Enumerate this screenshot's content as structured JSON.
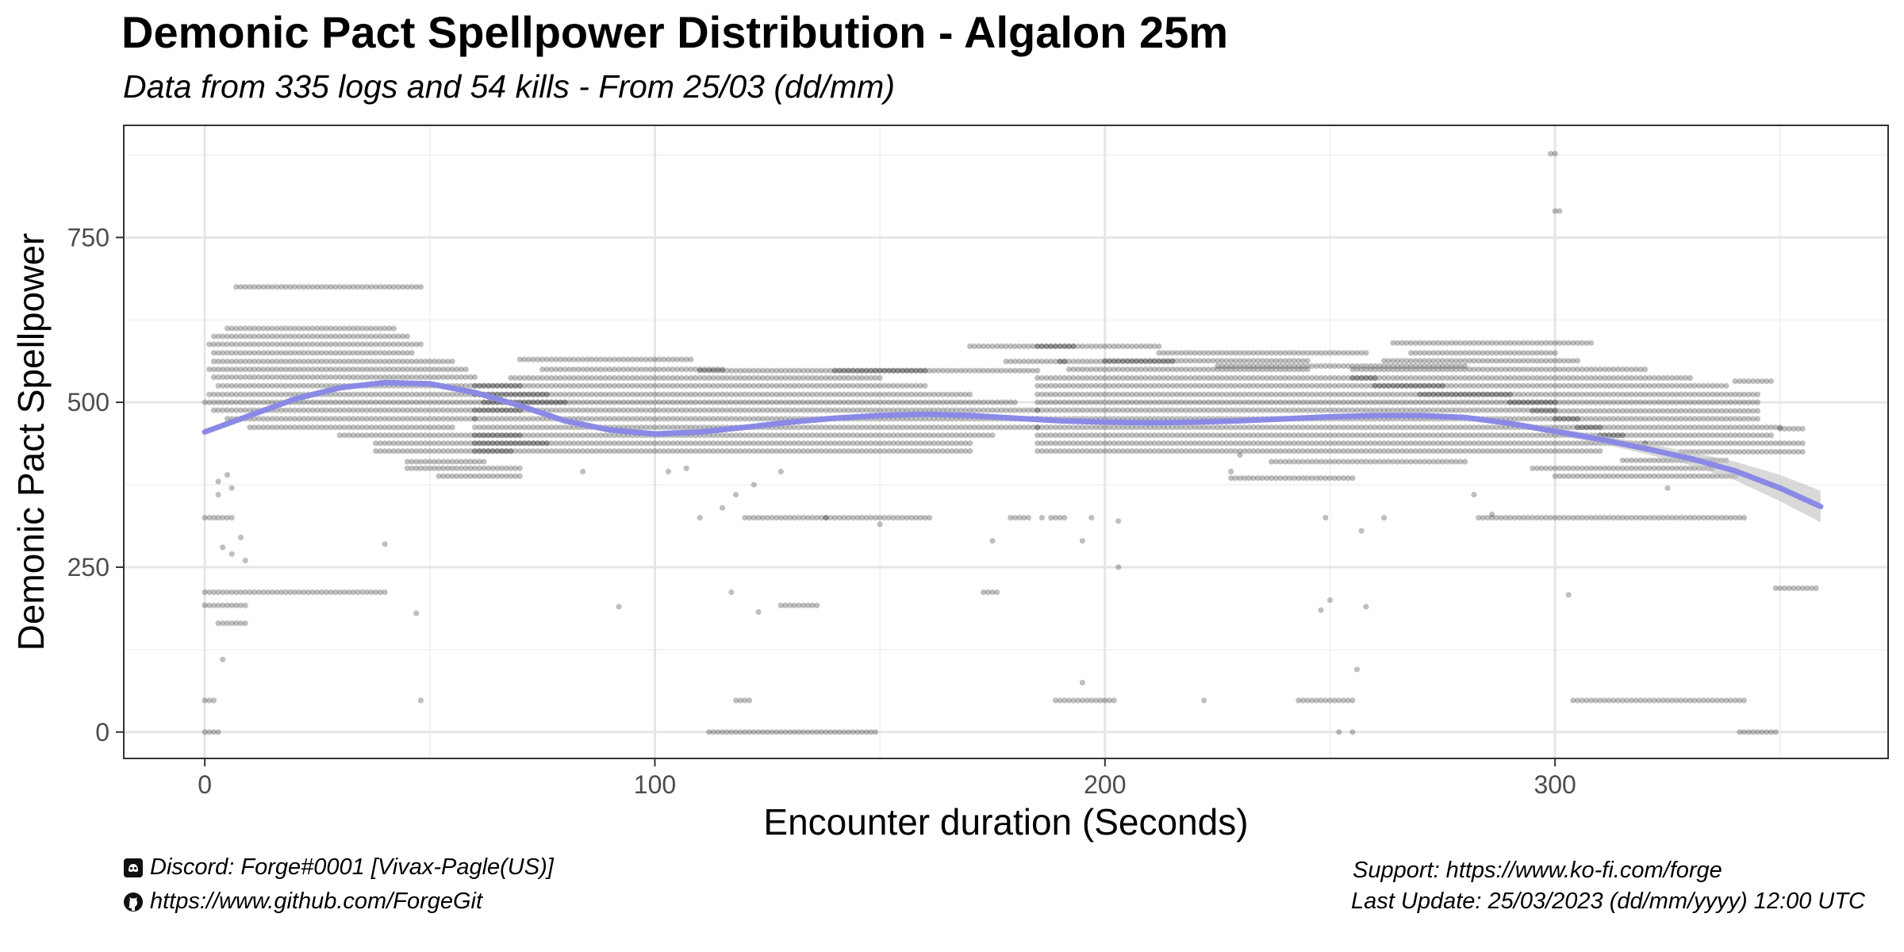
{
  "chart_data": {
    "type": "scatter",
    "title": "Demonic Pact Spellpower Distribution - Algalon 25m",
    "subtitle": "Data from 335 logs and 54 kills - From 25/03 (dd/mm)",
    "xlabel": "Encounter duration (Seconds)",
    "ylabel": "Demonic Pact Spellpower",
    "xlim": [
      -18,
      374
    ],
    "ylim": [
      -40,
      920
    ],
    "x_ticks": [
      0,
      100,
      200,
      300
    ],
    "x_tick_labels": [
      "0",
      "100",
      "200",
      "300"
    ],
    "y_ticks": [
      0,
      250,
      500,
      750
    ],
    "y_tick_labels": [
      "0",
      "250",
      "500",
      "750"
    ],
    "x_minor": [
      50,
      150,
      250,
      350
    ],
    "y_minor": [
      125,
      375,
      625,
      875
    ],
    "grid": true,
    "point_color": "#000000",
    "point_opacity": 0.25,
    "trend_color": "#8a8ae6",
    "band_color": "#bfbfbf",
    "trend": {
      "x": [
        0,
        10,
        20,
        30,
        40,
        50,
        60,
        70,
        80,
        90,
        100,
        110,
        120,
        130,
        140,
        150,
        160,
        170,
        180,
        190,
        200,
        210,
        220,
        230,
        240,
        250,
        260,
        270,
        280,
        290,
        300,
        310,
        320,
        330,
        340,
        350,
        359
      ],
      "y": [
        455,
        480,
        505,
        522,
        530,
        528,
        515,
        495,
        472,
        458,
        452,
        455,
        462,
        470,
        476,
        480,
        482,
        480,
        476,
        472,
        470,
        469,
        470,
        472,
        475,
        478,
        480,
        480,
        477,
        468,
        456,
        444,
        430,
        415,
        396,
        370,
        342
      ],
      "lower": [
        451,
        477,
        502,
        519,
        527,
        525,
        512,
        492,
        469,
        455,
        449,
        452,
        459,
        467,
        473,
        477,
        479,
        477,
        473,
        469,
        467,
        466,
        467,
        469,
        472,
        475,
        477,
        477,
        474,
        464,
        451,
        438,
        422,
        405,
        382,
        350,
        318
      ],
      "upper": [
        459,
        483,
        508,
        525,
        533,
        531,
        518,
        498,
        475,
        461,
        455,
        458,
        465,
        473,
        479,
        483,
        485,
        483,
        479,
        475,
        473,
        472,
        473,
        475,
        478,
        481,
        483,
        483,
        480,
        472,
        461,
        450,
        438,
        425,
        410,
        390,
        366
      ]
    },
    "dense_rows": [
      {
        "x0": 7,
        "x1": 48,
        "y": 675
      },
      {
        "x0": 5,
        "x1": 42,
        "y": 612
      },
      {
        "x0": 2,
        "x1": 45,
        "y": 600
      },
      {
        "x0": 1,
        "x1": 48,
        "y": 588
      },
      {
        "x0": 2,
        "x1": 46,
        "y": 575
      },
      {
        "x0": 2,
        "x1": 55,
        "y": 562
      },
      {
        "x0": 1,
        "x1": 58,
        "y": 550
      },
      {
        "x0": 2,
        "x1": 60,
        "y": 538
      },
      {
        "x0": 3,
        "x1": 70,
        "y": 525
      },
      {
        "x0": 1,
        "x1": 76,
        "y": 512
      },
      {
        "x0": 0,
        "x1": 80,
        "y": 500
      },
      {
        "x0": 2,
        "x1": 70,
        "y": 488
      },
      {
        "x0": 5,
        "x1": 60,
        "y": 475
      },
      {
        "x0": 10,
        "x1": 55,
        "y": 462
      },
      {
        "x0": 30,
        "x1": 70,
        "y": 450
      },
      {
        "x0": 38,
        "x1": 76,
        "y": 438
      },
      {
        "x0": 38,
        "x1": 68,
        "y": 426
      },
      {
        "x0": 45,
        "x1": 62,
        "y": 410
      },
      {
        "x0": 45,
        "x1": 70,
        "y": 400
      },
      {
        "x0": 52,
        "x1": 70,
        "y": 388
      },
      {
        "x0": 70,
        "x1": 108,
        "y": 565
      },
      {
        "x0": 75,
        "x1": 115,
        "y": 550
      },
      {
        "x0": 68,
        "x1": 150,
        "y": 537
      },
      {
        "x0": 60,
        "x1": 160,
        "y": 525
      },
      {
        "x0": 60,
        "x1": 170,
        "y": 512
      },
      {
        "x0": 62,
        "x1": 180,
        "y": 500
      },
      {
        "x0": 60,
        "x1": 185,
        "y": 488
      },
      {
        "x0": 60,
        "x1": 185,
        "y": 475
      },
      {
        "x0": 60,
        "x1": 185,
        "y": 462
      },
      {
        "x0": 60,
        "x1": 175,
        "y": 450
      },
      {
        "x0": 60,
        "x1": 170,
        "y": 438
      },
      {
        "x0": 60,
        "x1": 170,
        "y": 426
      },
      {
        "x0": 110,
        "x1": 160,
        "y": 548
      },
      {
        "x0": 140,
        "x1": 185,
        "y": 548
      },
      {
        "x0": 170,
        "x1": 193,
        "y": 585
      },
      {
        "x0": 178,
        "x1": 191,
        "y": 562
      },
      {
        "x0": 185,
        "x1": 212,
        "y": 585
      },
      {
        "x0": 190,
        "x1": 215,
        "y": 562
      },
      {
        "x0": 192,
        "x1": 245,
        "y": 550
      },
      {
        "x0": 185,
        "x1": 260,
        "y": 537
      },
      {
        "x0": 185,
        "x1": 275,
        "y": 525
      },
      {
        "x0": 185,
        "x1": 290,
        "y": 512
      },
      {
        "x0": 185,
        "x1": 300,
        "y": 500
      },
      {
        "x0": 185,
        "x1": 300,
        "y": 488
      },
      {
        "x0": 185,
        "x1": 305,
        "y": 475
      },
      {
        "x0": 185,
        "x1": 310,
        "y": 462
      },
      {
        "x0": 185,
        "x1": 315,
        "y": 450
      },
      {
        "x0": 185,
        "x1": 320,
        "y": 438
      },
      {
        "x0": 185,
        "x1": 310,
        "y": 426
      },
      {
        "x0": 200,
        "x1": 245,
        "y": 563
      },
      {
        "x0": 212,
        "x1": 258,
        "y": 575
      },
      {
        "x0": 225,
        "x1": 280,
        "y": 555
      },
      {
        "x0": 264,
        "x1": 308,
        "y": 590
      },
      {
        "x0": 268,
        "x1": 300,
        "y": 575
      },
      {
        "x0": 262,
        "x1": 305,
        "y": 563
      },
      {
        "x0": 255,
        "x1": 320,
        "y": 550
      },
      {
        "x0": 255,
        "x1": 330,
        "y": 537
      },
      {
        "x0": 260,
        "x1": 338,
        "y": 525
      },
      {
        "x0": 270,
        "x1": 345,
        "y": 512
      },
      {
        "x0": 290,
        "x1": 345,
        "y": 500
      },
      {
        "x0": 295,
        "x1": 345,
        "y": 487
      },
      {
        "x0": 300,
        "x1": 345,
        "y": 475
      },
      {
        "x0": 305,
        "x1": 350,
        "y": 462
      },
      {
        "x0": 310,
        "x1": 348,
        "y": 450
      },
      {
        "x0": 320,
        "x1": 355,
        "y": 438
      },
      {
        "x0": 328,
        "x1": 355,
        "y": 425
      },
      {
        "x0": 315,
        "x1": 338,
        "y": 412
      },
      {
        "x0": 295,
        "x1": 335,
        "y": 400
      },
      {
        "x0": 300,
        "x1": 340,
        "y": 388
      },
      {
        "x0": 340,
        "x1": 348,
        "y": 532
      },
      {
        "x0": 228,
        "x1": 255,
        "y": 385
      },
      {
        "x0": 237,
        "x1": 280,
        "y": 410
      },
      {
        "x0": 283,
        "x1": 342,
        "y": 325
      },
      {
        "x0": 120,
        "x1": 138,
        "y": 325
      },
      {
        "x0": 138,
        "x1": 161,
        "y": 325
      },
      {
        "x0": 0,
        "x1": 6,
        "y": 325
      },
      {
        "x0": 0,
        "x1": 40,
        "y": 212
      },
      {
        "x0": 0,
        "x1": 9,
        "y": 192
      },
      {
        "x0": 112,
        "x1": 149,
        "y": 0
      },
      {
        "x0": 0,
        "x1": 3,
        "y": 0
      },
      {
        "x0": 189,
        "x1": 202,
        "y": 48
      },
      {
        "x0": 243,
        "x1": 255,
        "y": 48
      },
      {
        "x0": 304,
        "x1": 342,
        "y": 48
      },
      {
        "x0": 341,
        "x1": 349,
        "y": 0
      },
      {
        "x0": 349,
        "x1": 358,
        "y": 218
      },
      {
        "x0": 0,
        "x1": 2,
        "y": 48
      },
      {
        "x0": 118,
        "x1": 121,
        "y": 48
      },
      {
        "x0": 128,
        "x1": 136,
        "y": 192
      },
      {
        "x0": 173,
        "x1": 176,
        "y": 212
      },
      {
        "x0": 179,
        "x1": 183,
        "y": 325
      },
      {
        "x0": 188,
        "x1": 191,
        "y": 325
      },
      {
        "x0": 3,
        "x1": 9,
        "y": 165
      },
      {
        "x0": 350,
        "x1": 355,
        "y": 460
      }
    ],
    "outliers": [
      {
        "x": 299,
        "y": 877
      },
      {
        "x": 300,
        "y": 877
      },
      {
        "x": 300,
        "y": 790
      },
      {
        "x": 301,
        "y": 790
      },
      {
        "x": 3,
        "y": 380
      },
      {
        "x": 5,
        "y": 390
      },
      {
        "x": 6,
        "y": 370
      },
      {
        "x": 3,
        "y": 360
      },
      {
        "x": 4,
        "y": 110
      },
      {
        "x": 4,
        "y": 280
      },
      {
        "x": 6,
        "y": 270
      },
      {
        "x": 8,
        "y": 295
      },
      {
        "x": 9,
        "y": 260
      },
      {
        "x": 40,
        "y": 285
      },
      {
        "x": 47,
        "y": 180
      },
      {
        "x": 48,
        "y": 48
      },
      {
        "x": 92,
        "y": 190
      },
      {
        "x": 103,
        "y": 395
      },
      {
        "x": 107,
        "y": 400
      },
      {
        "x": 110,
        "y": 325
      },
      {
        "x": 115,
        "y": 340
      },
      {
        "x": 117,
        "y": 212
      },
      {
        "x": 118,
        "y": 360
      },
      {
        "x": 122,
        "y": 375
      },
      {
        "x": 123,
        "y": 182
      },
      {
        "x": 150,
        "y": 315
      },
      {
        "x": 175,
        "y": 290
      },
      {
        "x": 186,
        "y": 325
      },
      {
        "x": 195,
        "y": 75
      },
      {
        "x": 195,
        "y": 290
      },
      {
        "x": 197,
        "y": 325
      },
      {
        "x": 203,
        "y": 320
      },
      {
        "x": 203,
        "y": 250
      },
      {
        "x": 222,
        "y": 48
      },
      {
        "x": 248,
        "y": 185
      },
      {
        "x": 249,
        "y": 325
      },
      {
        "x": 250,
        "y": 200
      },
      {
        "x": 252,
        "y": 0
      },
      {
        "x": 255,
        "y": 0
      },
      {
        "x": 256,
        "y": 95
      },
      {
        "x": 257,
        "y": 305
      },
      {
        "x": 258,
        "y": 190
      },
      {
        "x": 262,
        "y": 325
      },
      {
        "x": 282,
        "y": 360
      },
      {
        "x": 286,
        "y": 330
      },
      {
        "x": 303,
        "y": 208
      },
      {
        "x": 309,
        "y": 445
      },
      {
        "x": 325,
        "y": 370
      },
      {
        "x": 230,
        "y": 420
      },
      {
        "x": 228,
        "y": 395
      },
      {
        "x": 84,
        "y": 395
      },
      {
        "x": 128,
        "y": 395
      }
    ]
  },
  "footer": {
    "discord_icon": "discord-icon",
    "discord": "Discord: Forge#0001 [Vivax-Pagle(US)]",
    "github_icon": "github-icon",
    "github": "https://www.github.com/ForgeGit",
    "support": "Support: https://www.ko-fi.com/forge",
    "last_update": "Last Update: 25/03/2023 (dd/mm/yyyy) 12:00 UTC"
  }
}
